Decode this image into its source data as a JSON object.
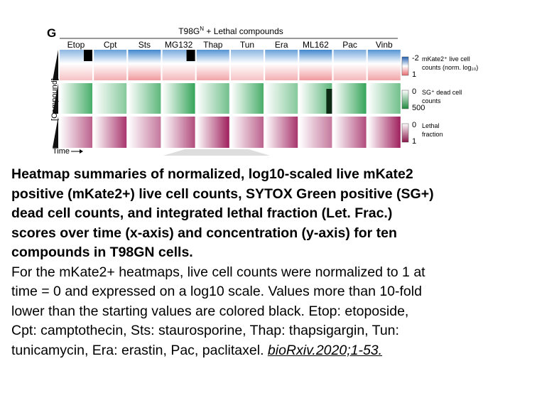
{
  "figure": {
    "panel": "G",
    "title": "T98G",
    "title_sup": "N",
    "title_rest": " + Lethal compounds",
    "columns": [
      "Etop",
      "Cpt",
      "Sts",
      "MG132",
      "Thap",
      "Tun",
      "Era",
      "ML162",
      "Pac",
      "Vinb"
    ],
    "y_label": "[Compound]",
    "x_label": "Time",
    "legends": [
      {
        "top": "-2",
        "bottom": "1",
        "label_lines": [
          "mKate2⁺ live cell",
          "counts (norm. log₁₀)"
        ]
      },
      {
        "top": "0",
        "bottom": "500",
        "label_lines": [
          "SG⁺ dead cell",
          "counts"
        ]
      },
      {
        "top": "0",
        "bottom": "1",
        "label_lines": [
          "Lethal",
          "fraction"
        ]
      }
    ]
  },
  "caption": {
    "bold_lines": [
      "Heatmap summaries of normalized, log10-scaled live mKate2",
      "positive (mKate2+) live cell counts, SYTOX Green positive (SG+)",
      "dead cell counts, and integrated lethal fraction (Let. Frac.)",
      "scores over time (x-axis) and concentration (y-axis) for ten",
      "compounds in T98GN cells."
    ],
    "lines": [
      "For the mKate2+ heatmaps, live cell counts were normalized to 1 at",
      "time = 0 and expressed on a log10 scale. Values more than 10-fold",
      "lower than the starting values are colored black. Etop: etoposide,",
      "Cpt: camptothecin, Sts: staurosporine, Thap: thapsigargin, Tun:",
      "tunicamycin, Era: erastin, Pac, paclitaxel. "
    ],
    "citation": "bioRxiv.2020;1-53."
  }
}
